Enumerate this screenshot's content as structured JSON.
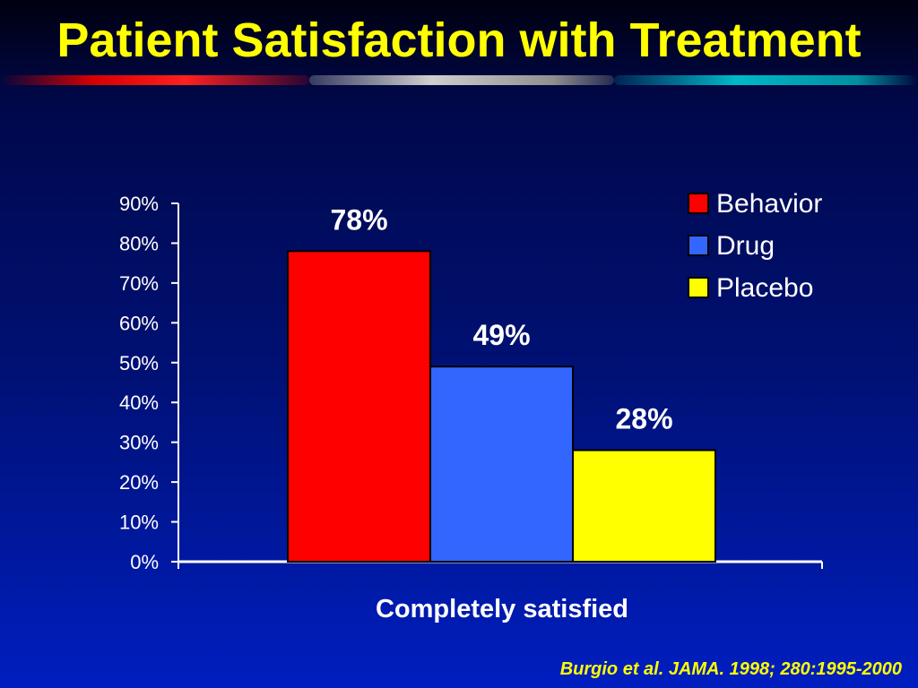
{
  "title": "Patient Satisfaction with Treatment",
  "citation": "Burgio et al. JAMA. 1998; 280:1995-2000",
  "colors": {
    "title_text": "#ffff00",
    "behavior": "#ff0000",
    "drug": "#3366ff",
    "placebo": "#ffff00"
  },
  "chart_data": {
    "type": "bar",
    "categories": [
      "Completely satisfied"
    ],
    "series": [
      {
        "name": "Behavior",
        "values": [
          78
        ],
        "label": "78%",
        "color": "#ff0000"
      },
      {
        "name": "Drug",
        "values": [
          49
        ],
        "label": "49%",
        "color": "#3366ff"
      },
      {
        "name": "Placebo",
        "values": [
          28
        ],
        "label": "28%",
        "color": "#ffff00"
      }
    ],
    "ylim": [
      0,
      90
    ],
    "yticks": [
      0,
      10,
      20,
      30,
      40,
      50,
      60,
      70,
      80,
      90
    ],
    "ytick_labels": [
      "0%",
      "10%",
      "20%",
      "30%",
      "40%",
      "50%",
      "60%",
      "70%",
      "80%",
      "90%"
    ],
    "xlabel": "Completely satisfied",
    "ylabel": "",
    "grid": false,
    "legend_position": "top-right"
  }
}
